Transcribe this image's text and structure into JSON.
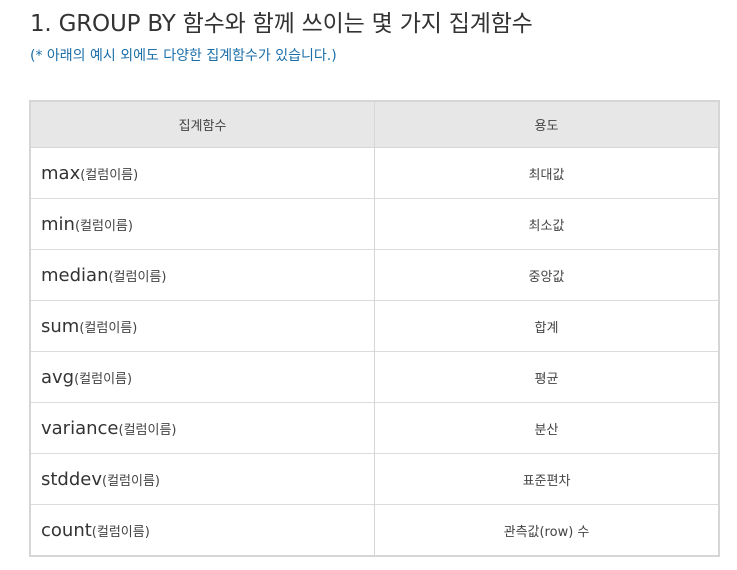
{
  "heading": "1. GROUP BY 함수와 함께 쓰이는 몇 가지 집계함수",
  "note": "(* 아래의 예시 외에도 다양한 집계함수가 있습니다.)",
  "table": {
    "headers": [
      "집계함수",
      "용도"
    ],
    "rows": [
      {
        "fn": "max",
        "arg": "(컬럼이름)",
        "purpose": "최대값"
      },
      {
        "fn": "min",
        "arg": "(컬럼이름)",
        "purpose": "최소값"
      },
      {
        "fn": "median",
        "arg": "(컬럼이름)",
        "purpose": "중앙값"
      },
      {
        "fn": "sum",
        "arg": "(컬럼이름)",
        "purpose": "합계"
      },
      {
        "fn": "avg",
        "arg": "(컬럼이름)",
        "purpose": "평균"
      },
      {
        "fn": "variance",
        "arg": "(컬럼이름)",
        "purpose": "분산"
      },
      {
        "fn": "stddev",
        "arg": "(컬럼이름)",
        "purpose": "표준편차"
      },
      {
        "fn": "count",
        "arg": "(컬럼이름)",
        "purpose": "관측값(row) 수"
      }
    ]
  },
  "colors": {
    "note": "#1b6fa8",
    "header_bg": "#e7e7e7",
    "border": "#d6d6d6"
  }
}
